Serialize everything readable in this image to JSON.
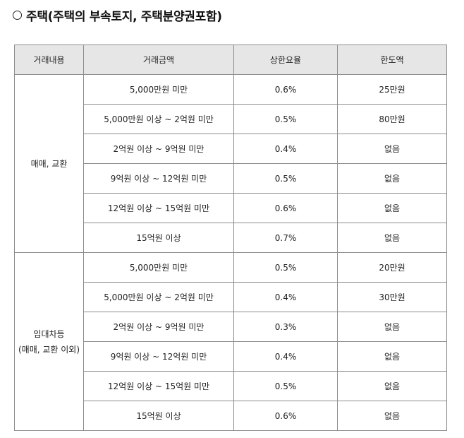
{
  "heading": {
    "bullet_icon": "circle-outline-icon",
    "text": "주택(주택의 부속토지, 주택분양권포함)"
  },
  "table": {
    "headers": [
      "거래내용",
      "거래금액",
      "상한요율",
      "한도액"
    ],
    "groups": [
      {
        "category_lines": [
          "매매, 교환"
        ],
        "rows": [
          {
            "amount": "5,000만원 미만",
            "rate": "0.6%",
            "limit": "25만원"
          },
          {
            "amount": "5,000만원 이상 ~ 2억원 미만",
            "rate": "0.5%",
            "limit": "80만원"
          },
          {
            "amount": "2억원 이상 ~ 9억원 미만",
            "rate": "0.4%",
            "limit": "없음"
          },
          {
            "amount": "9억원 이상  ~ 12억원 미만",
            "rate": "0.5%",
            "limit": "없음"
          },
          {
            "amount": "12억원 이상 ~ 15억원 미만",
            "rate": "0.6%",
            "limit": "없음"
          },
          {
            "amount": "15억원 이상",
            "rate": "0.7%",
            "limit": "없음"
          }
        ]
      },
      {
        "category_lines": [
          "임대차등",
          "(매매, 교환 이외)"
        ],
        "rows": [
          {
            "amount": "5,000만원 미만",
            "rate": "0.5%",
            "limit": "20만원"
          },
          {
            "amount": "5,000만원 이상 ~ 2억원 미만",
            "rate": "0.4%",
            "limit": "30만원"
          },
          {
            "amount": "2억원 이상 ~ 9억원 미만",
            "rate": "0.3%",
            "limit": "없음"
          },
          {
            "amount": "9억원 이상 ~ 12억원 미만",
            "rate": "0.4%",
            "limit": "없음"
          },
          {
            "amount": "12억원 이상 ~ 15억원 미만",
            "rate": "0.5%",
            "limit": "없음"
          },
          {
            "amount": "15억원 이상",
            "rate": "0.6%",
            "limit": "없음"
          }
        ]
      }
    ]
  }
}
